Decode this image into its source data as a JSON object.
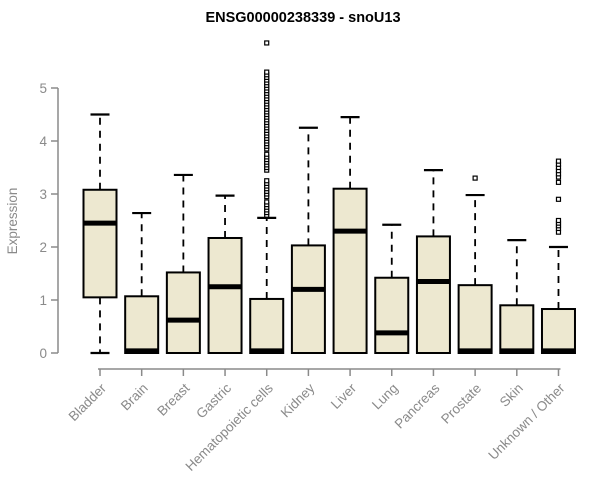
{
  "chart_data": {
    "type": "boxplot",
    "title": "ENSG00000238339 - snoU13",
    "ylabel": "Expression",
    "xlabel": "",
    "ylim": [
      0,
      5.9
    ],
    "yticks": [
      0,
      1,
      2,
      3,
      4,
      5
    ],
    "grid": false,
    "legend": "none",
    "box_fill": "#EDE8D0",
    "box_stroke": "#000000",
    "median_color": "#000000",
    "whisker_style": "dashed",
    "axis_color": "#8a8a8a",
    "label_color": "#8a8a8a",
    "categories": [
      "Bladder",
      "Brain",
      "Breast",
      "Gastric",
      "Hematopoietic cells",
      "Kidney",
      "Liver",
      "Lung",
      "Pancreas",
      "Prostate",
      "Skin",
      "Unknown / Other"
    ],
    "series": [
      {
        "name": "Bladder",
        "low": 0,
        "q1": 1.05,
        "median": 2.45,
        "q3": 3.08,
        "high": 4.5,
        "outliers": []
      },
      {
        "name": "Brain",
        "low": 0,
        "q1": 0,
        "median": 0.04,
        "q3": 1.07,
        "high": 2.64,
        "outliers": []
      },
      {
        "name": "Breast",
        "low": 0,
        "q1": 0,
        "median": 0.62,
        "q3": 1.52,
        "high": 3.36,
        "outliers": []
      },
      {
        "name": "Gastric",
        "low": 0,
        "q1": 0,
        "median": 1.25,
        "q3": 2.17,
        "high": 2.97,
        "outliers": []
      },
      {
        "name": "Hematopoietic cells",
        "low": 0,
        "q1": 0,
        "median": 0.04,
        "q3": 1.02,
        "high": 2.55,
        "outliers": [
          2.6,
          2.65,
          2.7,
          2.75,
          2.8,
          2.85,
          2.95,
          3.0,
          3.05,
          3.1,
          3.15,
          3.2,
          3.25,
          3.45,
          3.5,
          3.55,
          3.6,
          3.65,
          3.7,
          3.75,
          3.85,
          3.9,
          3.95,
          4.0,
          4.05,
          4.1,
          4.15,
          4.2,
          4.25,
          4.3,
          4.35,
          4.4,
          4.45,
          4.5,
          4.55,
          4.6,
          4.65,
          4.7,
          4.75,
          4.8,
          4.85,
          4.9,
          4.95,
          5.0,
          5.05,
          5.1,
          5.15,
          5.2,
          5.25,
          5.3,
          5.85
        ]
      },
      {
        "name": "Kidney",
        "low": 0,
        "q1": 0,
        "median": 1.2,
        "q3": 2.03,
        "high": 4.25,
        "outliers": []
      },
      {
        "name": "Liver",
        "low": 0,
        "q1": 0,
        "median": 2.3,
        "q3": 3.1,
        "high": 4.45,
        "outliers": []
      },
      {
        "name": "Lung",
        "low": 0,
        "q1": 0,
        "median": 0.38,
        "q3": 1.42,
        "high": 2.42,
        "outliers": []
      },
      {
        "name": "Pancreas",
        "low": 0,
        "q1": 0,
        "median": 1.35,
        "q3": 2.2,
        "high": 3.45,
        "outliers": []
      },
      {
        "name": "Prostate",
        "low": 0,
        "q1": 0,
        "median": 0.04,
        "q3": 1.28,
        "high": 2.98,
        "outliers": [
          3.3
        ]
      },
      {
        "name": "Skin",
        "low": 0,
        "q1": 0,
        "median": 0.04,
        "q3": 0.9,
        "high": 2.13,
        "outliers": []
      },
      {
        "name": "Unknown / Other",
        "low": 0,
        "q1": 0,
        "median": 0.04,
        "q3": 0.83,
        "high": 2.0,
        "outliers": [
          2.28,
          2.35,
          2.4,
          2.45,
          2.5,
          2.9,
          3.22,
          3.32,
          3.38,
          3.44,
          3.5,
          3.56,
          3.62
        ]
      }
    ]
  }
}
